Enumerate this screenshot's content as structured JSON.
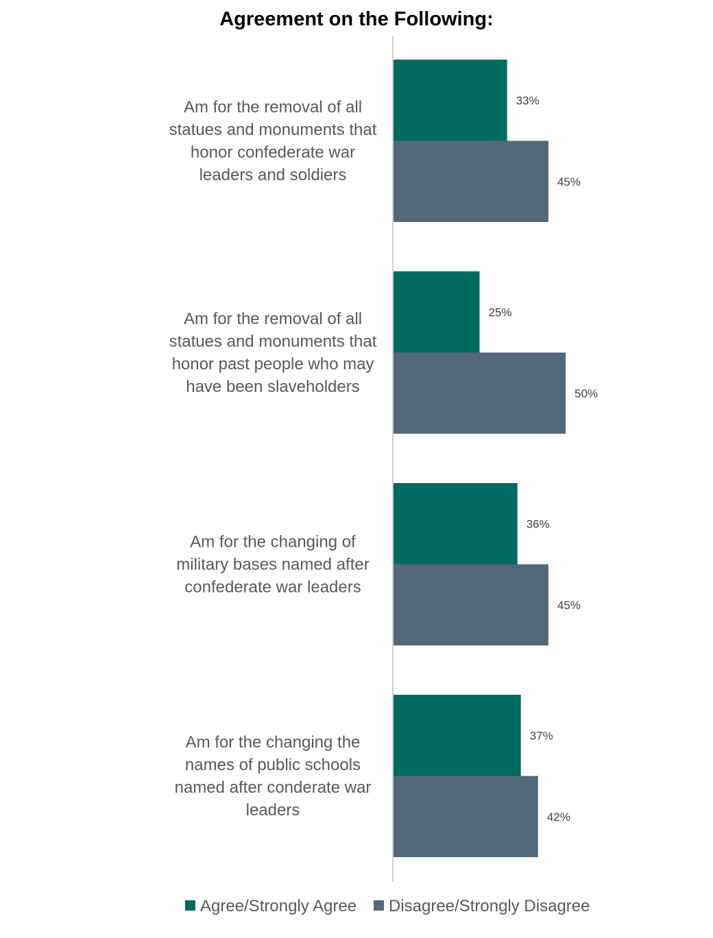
{
  "chart_data": {
    "type": "bar",
    "orientation": "horizontal",
    "title": "Agreement on the Following:",
    "categories": [
      [
        "Am for the removal of all",
        "statues and monuments that",
        "honor confederate war",
        "leaders and soldiers"
      ],
      [
        "Am for the removal of all",
        "statues and monuments that",
        "honor past people who may",
        "have been slaveholders"
      ],
      [
        "Am for the changing of",
        "military bases named after",
        "confederate war leaders"
      ],
      [
        "Am for the changing the",
        "names of public schools",
        "named after conderate war",
        "leaders"
      ]
    ],
    "series": [
      {
        "name": "Agree/Strongly Agree",
        "color": "#006B5F",
        "values": [
          33,
          25,
          36,
          37
        ]
      },
      {
        "name": "Disagree/Strongly Disagree",
        "color": "#536878",
        "values": [
          45,
          50,
          45,
          42
        ]
      }
    ],
    "value_suffix": "%",
    "xlim": [
      0,
      100
    ],
    "grid": false,
    "legend_position": "bottom"
  }
}
